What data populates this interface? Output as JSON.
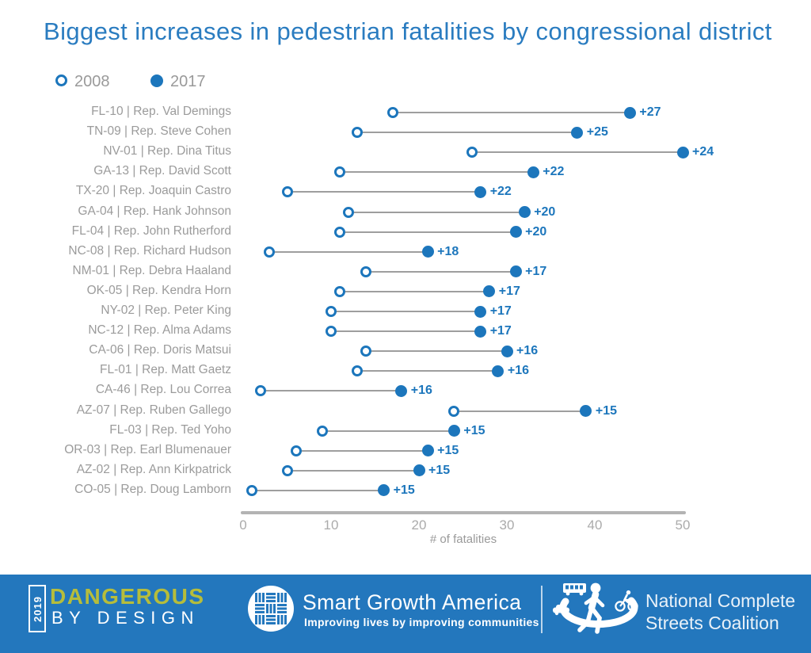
{
  "title": "Biggest increases in pedestrian fatalities by congressional district",
  "legend": {
    "open_label": "2008",
    "filled_label": "2017"
  },
  "colors": {
    "accent_blue": "#1c76bc",
    "title_blue": "#2a7cc0",
    "banner_blue": "#2377bd",
    "brand_yellow": "#b6bd3b",
    "label_gray": "#9b9b9b",
    "axis_gray": "#b3b3b3"
  },
  "chart_data": {
    "type": "dumbbell",
    "title": "Biggest increases in pedestrian fatalities by congressional district",
    "xlabel": "# of fatalities",
    "xlim": [
      0,
      50
    ],
    "x_ticks": [
      0,
      10,
      20,
      30,
      40,
      50
    ],
    "series_names": [
      "2008",
      "2017"
    ],
    "legend_position": "top-left",
    "grid": false,
    "rows": [
      {
        "label": "FL-10 | Rep. Val Demings",
        "district": "FL-10",
        "rep": "Rep. Val Demings",
        "y2008": 17,
        "y2017": 44,
        "delta_label": "+27"
      },
      {
        "label": "TN-09 | Rep. Steve Cohen",
        "district": "TN-09",
        "rep": "Rep. Steve Cohen",
        "y2008": 13,
        "y2017": 38,
        "delta_label": "+25"
      },
      {
        "label": "NV-01 | Rep. Dina Titus",
        "district": "NV-01",
        "rep": "Rep. Dina Titus",
        "y2008": 26,
        "y2017": 50,
        "delta_label": "+24"
      },
      {
        "label": "GA-13 | Rep. David Scott",
        "district": "GA-13",
        "rep": "Rep. David Scott",
        "y2008": 11,
        "y2017": 33,
        "delta_label": "+22"
      },
      {
        "label": "TX-20 | Rep. Joaquin Castro",
        "district": "TX-20",
        "rep": "Rep. Joaquin Castro",
        "y2008": 5,
        "y2017": 27,
        "delta_label": "+22"
      },
      {
        "label": "GA-04 | Rep. Hank Johnson",
        "district": "GA-04",
        "rep": "Rep. Hank Johnson",
        "y2008": 12,
        "y2017": 32,
        "delta_label": "+20"
      },
      {
        "label": "FL-04 | Rep. John Rutherford",
        "district": "FL-04",
        "rep": "Rep. John Rutherford",
        "y2008": 11,
        "y2017": 31,
        "delta_label": "+20"
      },
      {
        "label": "NC-08 | Rep. Richard Hudson",
        "district": "NC-08",
        "rep": "Rep. Richard Hudson",
        "y2008": 3,
        "y2017": 21,
        "delta_label": "+18"
      },
      {
        "label": "NM-01 | Rep. Debra Haaland",
        "district": "NM-01",
        "rep": "Rep. Debra Haaland",
        "y2008": 14,
        "y2017": 31,
        "delta_label": "+17"
      },
      {
        "label": "OK-05 | Rep. Kendra Horn",
        "district": "OK-05",
        "rep": "Rep. Kendra Horn",
        "y2008": 11,
        "y2017": 28,
        "delta_label": "+17"
      },
      {
        "label": "NY-02 | Rep. Peter King",
        "district": "NY-02",
        "rep": "Rep. Peter King",
        "y2008": 10,
        "y2017": 27,
        "delta_label": "+17"
      },
      {
        "label": "NC-12 | Rep. Alma Adams",
        "district": "NC-12",
        "rep": "Rep. Alma Adams",
        "y2008": 10,
        "y2017": 27,
        "delta_label": "+17"
      },
      {
        "label": "CA-06 | Rep. Doris Matsui",
        "district": "CA-06",
        "rep": "Rep. Doris Matsui",
        "y2008": 14,
        "y2017": 30,
        "delta_label": "+16"
      },
      {
        "label": "FL-01 | Rep. Matt Gaetz",
        "district": "FL-01",
        "rep": "Rep. Matt Gaetz",
        "y2008": 13,
        "y2017": 29,
        "delta_label": "+16"
      },
      {
        "label": "CA-46 | Rep. Lou Correa",
        "district": "CA-46",
        "rep": "Rep. Lou Correa",
        "y2008": 2,
        "y2017": 18,
        "delta_label": "+16"
      },
      {
        "label": "AZ-07 | Rep. Ruben Gallego",
        "district": "AZ-07",
        "rep": "Rep. Ruben Gallego",
        "y2008": 24,
        "y2017": 39,
        "delta_label": "+15"
      },
      {
        "label": "FL-03 | Rep. Ted Yoho",
        "district": "FL-03",
        "rep": "Rep. Ted Yoho",
        "y2008": 9,
        "y2017": 24,
        "delta_label": "+15"
      },
      {
        "label": "OR-03 | Rep. Earl Blumenauer",
        "district": "OR-03",
        "rep": "Rep. Earl Blumenauer",
        "y2008": 6,
        "y2017": 21,
        "delta_label": "+15"
      },
      {
        "label": "AZ-02 | Rep. Ann Kirkpatrick",
        "district": "AZ-02",
        "rep": "Rep. Ann Kirkpatrick",
        "y2008": 5,
        "y2017": 20,
        "delta_label": "+15"
      },
      {
        "label": "CO-05 | Rep. Doug Lamborn",
        "district": "CO-05",
        "rep": "Rep. Doug Lamborn",
        "y2008": 1,
        "y2017": 16,
        "delta_label": "+15"
      }
    ]
  },
  "footer": {
    "year": "2019",
    "brand_line1": "DANGEROUS",
    "brand_line2": "BY DESIGN",
    "sga_name": "Smart Growth America",
    "sga_tagline": "Improving lives by improving communities",
    "ncsc_line1": "National Complete",
    "ncsc_line2": "Streets Coalition"
  }
}
